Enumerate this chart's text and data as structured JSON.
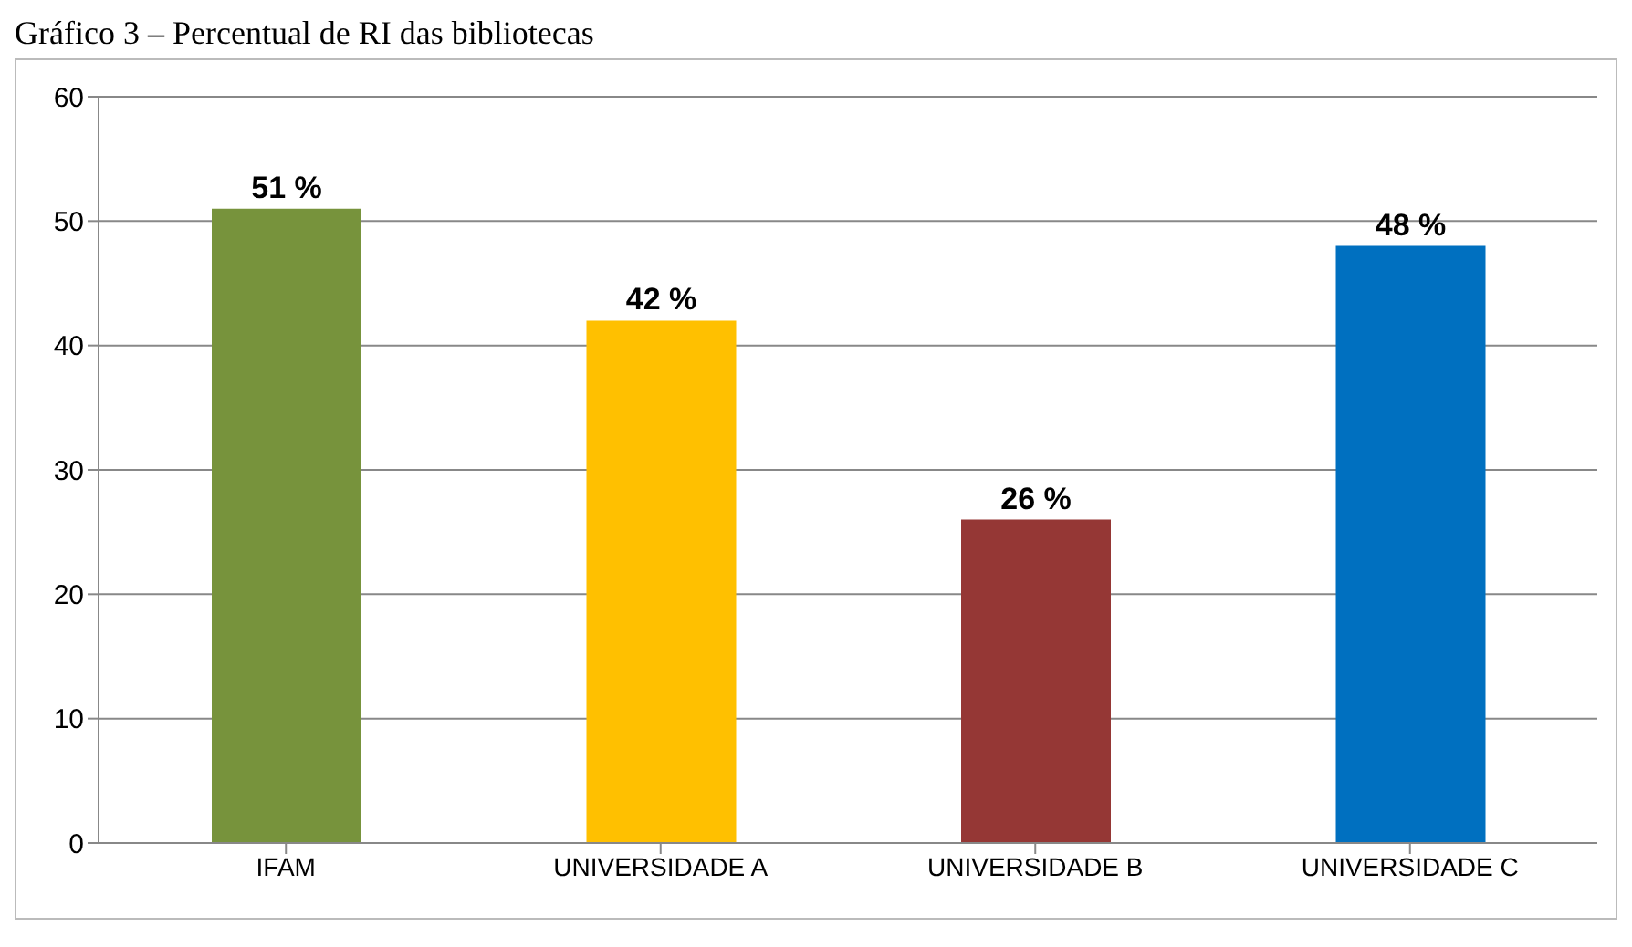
{
  "chart_data": {
    "type": "bar",
    "title": "Gráfico 3 – Percentual de RI das bibliotecas",
    "categories": [
      "IFAM",
      "UNIVERSIDADE A",
      "UNIVERSIDADE B",
      "UNIVERSIDADE C"
    ],
    "values": [
      51,
      42,
      26,
      48
    ],
    "colors": [
      "#77933c",
      "#ffc000",
      "#953735",
      "#0070c0"
    ],
    "value_labels": [
      "51 %",
      "42 %",
      "26 %",
      "48 %"
    ],
    "ylim": [
      0,
      60
    ],
    "yticks": [
      0,
      10,
      20,
      30,
      40,
      50,
      60
    ],
    "grid": "y"
  }
}
